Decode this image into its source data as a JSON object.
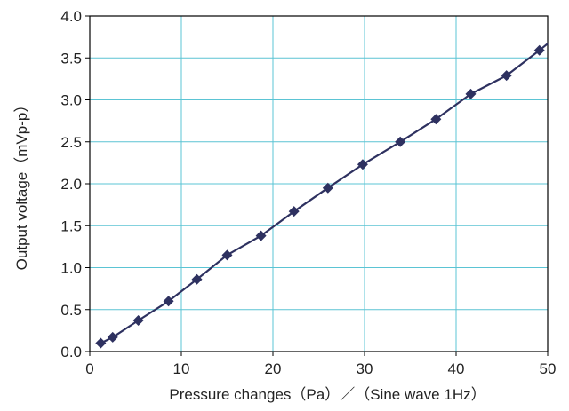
{
  "chart_data": {
    "type": "line",
    "xlabel": "Pressure changes（Pa）／（Sine wave 1Hz）",
    "ylabel": "Output voltage（mVp-p）",
    "xlim": [
      0,
      50
    ],
    "ylim": [
      0,
      4.0
    ],
    "x_ticks": [
      "0",
      "10",
      "20",
      "30",
      "40",
      "50"
    ],
    "y_ticks": [
      "0.0",
      "0.5",
      "1.0",
      "1.5",
      "2.0",
      "2.5",
      "3.0",
      "3.5",
      "4.0"
    ],
    "grid": true,
    "colors": {
      "line": "#2e3160",
      "marker": "#2e3160",
      "grid": "#5bc4d4",
      "frame": "#000000"
    },
    "series": [
      {
        "x": [
          1.2,
          2.5,
          5.3,
          8.6,
          11.7,
          15.0,
          18.7,
          22.3,
          26.0,
          29.8,
          33.9,
          37.8,
          41.6,
          45.5,
          49.1
        ],
        "y": [
          0.1,
          0.17,
          0.37,
          0.6,
          0.86,
          1.15,
          1.38,
          1.67,
          1.95,
          2.23,
          2.5,
          2.77,
          3.07,
          3.29,
          3.59
        ]
      }
    ],
    "line_extends_to": {
      "x": 50.0,
      "y": 3.67
    }
  }
}
